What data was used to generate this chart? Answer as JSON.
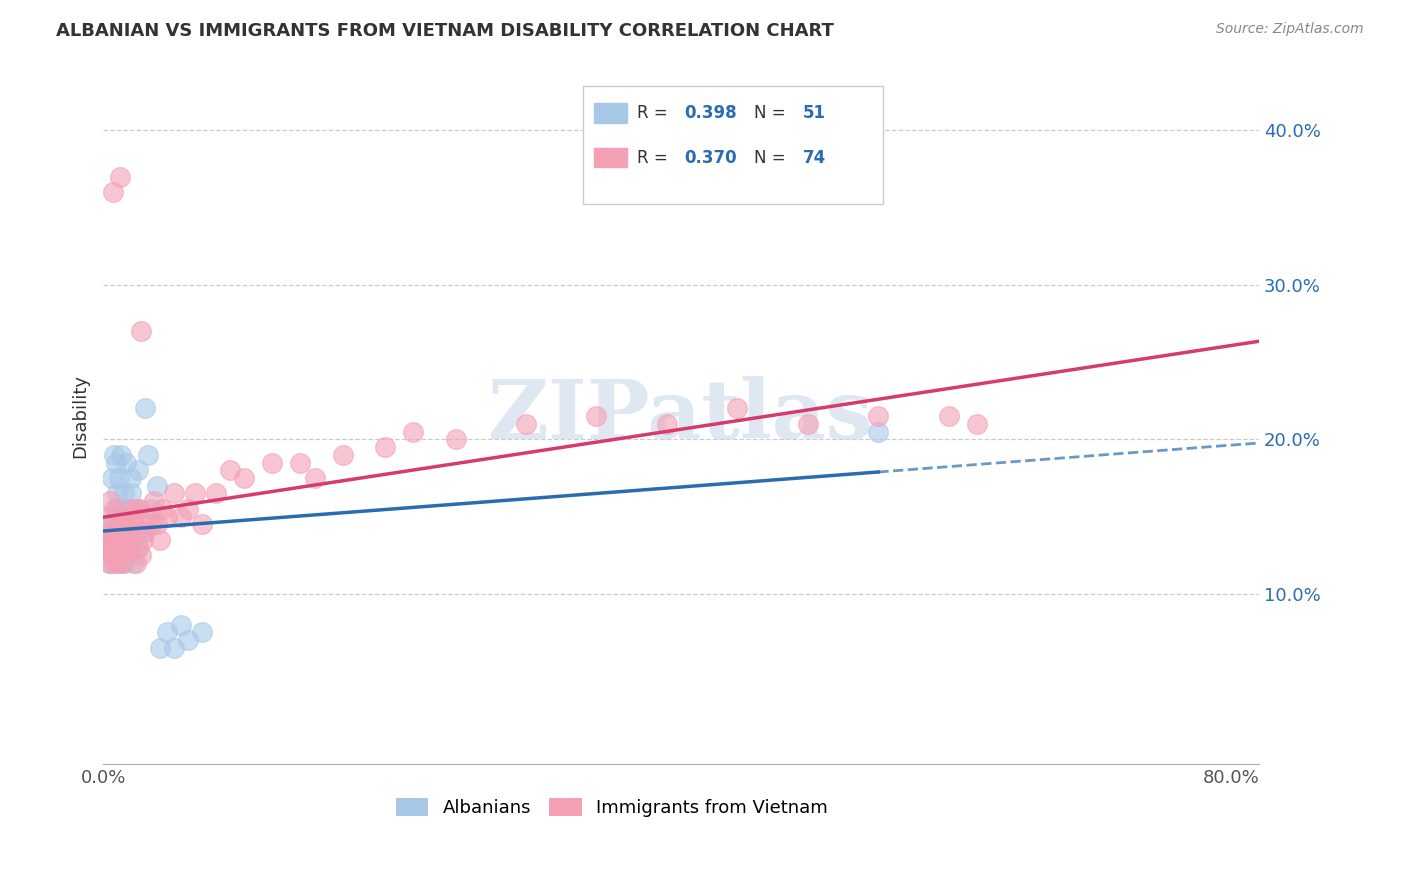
{
  "title": "ALBANIAN VS IMMIGRANTS FROM VIETNAM DISABILITY CORRELATION CHART",
  "source": "Source: ZipAtlas.com",
  "ylabel": "Disability",
  "watermark": "ZIPatlas",
  "blue_color": "#a8c8e8",
  "blue_line_color": "#2b6cb0",
  "pink_color": "#f4a0b5",
  "pink_line_color": "#d63c6b",
  "xlim": [
    0.0,
    0.82
  ],
  "ylim": [
    -0.01,
    0.44
  ],
  "yticks": [
    0.1,
    0.2,
    0.3,
    0.4
  ],
  "ytick_labels": [
    "10.0%",
    "20.0%",
    "30.0%",
    "40.0%"
  ],
  "xticks": [
    0.0,
    0.1,
    0.2,
    0.3,
    0.4,
    0.5,
    0.6,
    0.7,
    0.8
  ],
  "xtick_labels": [
    "0.0%",
    "",
    "",
    "",
    "",
    "",
    "",
    "",
    "80.0%"
  ],
  "albanian_x": [
    0.002,
    0.003,
    0.004,
    0.004,
    0.005,
    0.005,
    0.006,
    0.006,
    0.007,
    0.007,
    0.008,
    0.008,
    0.009,
    0.009,
    0.01,
    0.01,
    0.01,
    0.011,
    0.011,
    0.012,
    0.012,
    0.013,
    0.013,
    0.014,
    0.014,
    0.015,
    0.015,
    0.016,
    0.016,
    0.017,
    0.018,
    0.019,
    0.02,
    0.02,
    0.021,
    0.022,
    0.023,
    0.025,
    0.025,
    0.028,
    0.03,
    0.032,
    0.034,
    0.038,
    0.04,
    0.045,
    0.05,
    0.055,
    0.06,
    0.07,
    0.55
  ],
  "albanian_y": [
    0.13,
    0.14,
    0.145,
    0.12,
    0.135,
    0.15,
    0.13,
    0.175,
    0.14,
    0.125,
    0.13,
    0.19,
    0.185,
    0.14,
    0.155,
    0.165,
    0.13,
    0.14,
    0.175,
    0.12,
    0.145,
    0.19,
    0.135,
    0.155,
    0.14,
    0.165,
    0.12,
    0.14,
    0.185,
    0.14,
    0.135,
    0.135,
    0.175,
    0.165,
    0.12,
    0.155,
    0.14,
    0.18,
    0.13,
    0.14,
    0.22,
    0.19,
    0.155,
    0.17,
    0.065,
    0.075,
    0.065,
    0.08,
    0.07,
    0.075,
    0.205
  ],
  "vietnam_x": [
    0.002,
    0.003,
    0.004,
    0.005,
    0.005,
    0.005,
    0.006,
    0.007,
    0.007,
    0.008,
    0.008,
    0.008,
    0.009,
    0.009,
    0.01,
    0.01,
    0.011,
    0.012,
    0.012,
    0.013,
    0.013,
    0.014,
    0.015,
    0.015,
    0.016,
    0.016,
    0.017,
    0.018,
    0.018,
    0.019,
    0.02,
    0.02,
    0.021,
    0.022,
    0.023,
    0.024,
    0.025,
    0.026,
    0.027,
    0.028,
    0.03,
    0.032,
    0.034,
    0.036,
    0.038,
    0.04,
    0.042,
    0.045,
    0.05,
    0.055,
    0.06,
    0.065,
    0.07,
    0.08,
    0.09,
    0.1,
    0.12,
    0.14,
    0.15,
    0.17,
    0.2,
    0.22,
    0.25,
    0.3,
    0.35,
    0.4,
    0.45,
    0.5,
    0.55,
    0.6,
    0.62,
    0.012,
    0.027,
    0.007
  ],
  "vietnam_y": [
    0.13,
    0.13,
    0.135,
    0.12,
    0.14,
    0.16,
    0.125,
    0.13,
    0.145,
    0.12,
    0.14,
    0.155,
    0.125,
    0.135,
    0.12,
    0.15,
    0.13,
    0.14,
    0.125,
    0.13,
    0.145,
    0.12,
    0.13,
    0.145,
    0.135,
    0.14,
    0.13,
    0.155,
    0.135,
    0.145,
    0.13,
    0.14,
    0.15,
    0.145,
    0.12,
    0.155,
    0.13,
    0.155,
    0.125,
    0.135,
    0.14,
    0.15,
    0.145,
    0.16,
    0.145,
    0.135,
    0.155,
    0.15,
    0.165,
    0.15,
    0.155,
    0.165,
    0.145,
    0.165,
    0.18,
    0.175,
    0.185,
    0.185,
    0.175,
    0.19,
    0.195,
    0.205,
    0.2,
    0.21,
    0.215,
    0.21,
    0.22,
    0.21,
    0.215,
    0.215,
    0.21,
    0.37,
    0.27,
    0.36
  ]
}
